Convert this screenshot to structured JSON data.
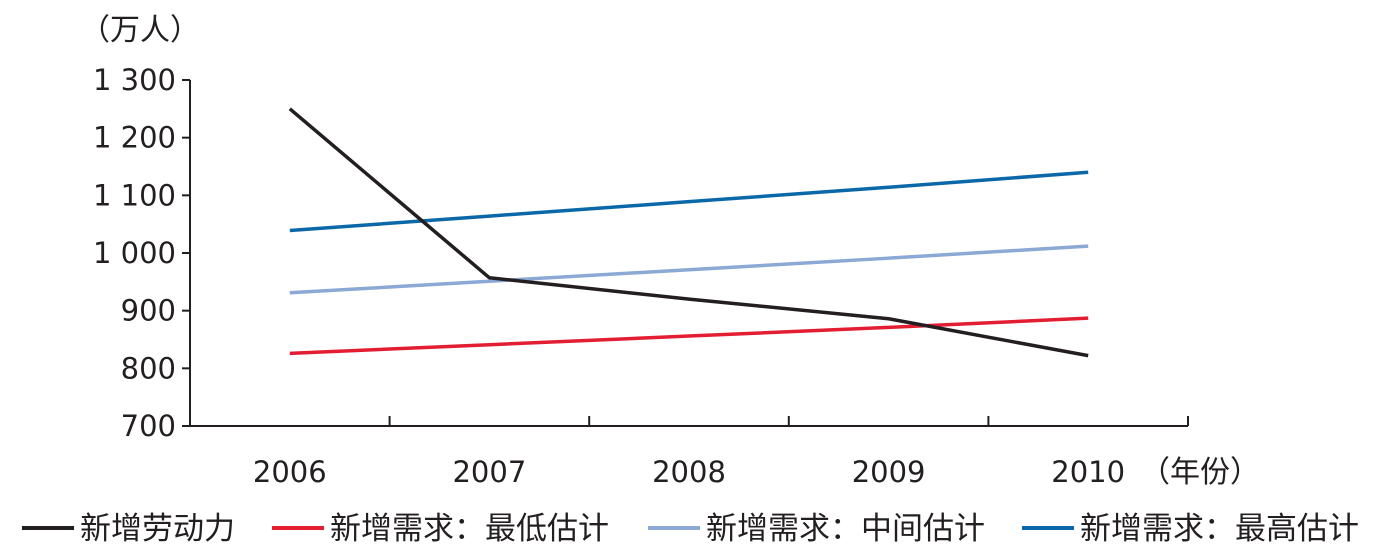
{
  "chart_data": {
    "type": "line",
    "y_unit_label": "（万人）",
    "x_unit_label": "（年份）",
    "categories": [
      "2006",
      "2007",
      "2008",
      "2009",
      "2010"
    ],
    "ylim": [
      700,
      1300
    ],
    "y_ticks": [
      700,
      800,
      900,
      1000,
      1100,
      1200,
      1300
    ],
    "y_tick_labels": [
      "700",
      "800",
      "900",
      "1 000",
      "1 100",
      "1 200",
      "1 300"
    ],
    "grid": false,
    "legend_position": "bottom",
    "series": [
      {
        "name": "新增劳动力",
        "color": "#231f20",
        "values": [
          1250,
          957,
          920,
          886,
          822
        ]
      },
      {
        "name": "新增需求：最低估计",
        "color": "#e31e33",
        "values": [
          826,
          841,
          856,
          871,
          887
        ]
      },
      {
        "name": "新增需求：中间估计",
        "color": "#8ba9d4",
        "values": [
          931,
          951,
          971,
          991,
          1012
        ]
      },
      {
        "name": "新增需求：最高估计",
        "color": "#0b68a8",
        "values": [
          1039,
          1064,
          1089,
          1114,
          1140
        ]
      }
    ]
  }
}
